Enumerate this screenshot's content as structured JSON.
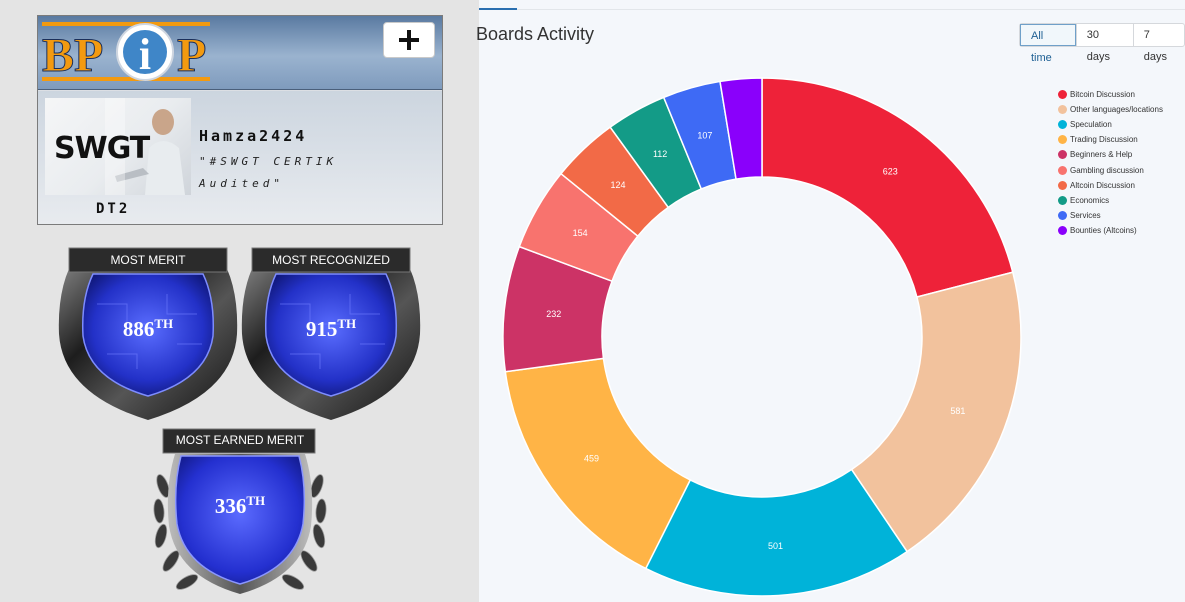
{
  "profile": {
    "logo": {
      "text_left": "BP",
      "text_center": "i",
      "text_right": "P"
    },
    "add_label": "+",
    "avatar_text": "SWGT",
    "username": "Hamza2424",
    "motto_line1": "\"#SWGT CERTIK",
    "motto_line2": "Audited\"",
    "trust_label": "DT2"
  },
  "badges": [
    {
      "title": "MOST MERIT",
      "rank": "886",
      "suffix": "TH"
    },
    {
      "title": "MOST RECOGNIZED",
      "rank": "915",
      "suffix": "TH"
    },
    {
      "title": "MOST EARNED MERIT",
      "rank": "336",
      "suffix": "TH"
    }
  ],
  "chart_panel": {
    "title": "Boards Activity",
    "ranges": [
      {
        "label": "All time",
        "active": true
      },
      {
        "label": "30 days",
        "active": false
      },
      {
        "label": "7 days",
        "active": false
      }
    ]
  },
  "chart_data": {
    "type": "pie",
    "variant": "donut",
    "title": "Boards Activity",
    "legend_position": "top-right",
    "categories": [
      "Bitcoin Discussion",
      "Other languages/locations",
      "Speculation",
      "Trading Discussion",
      "Beginners & Help",
      "Gambling discussion",
      "Altcoin Discussion",
      "Economics",
      "Services",
      "Bounties (Altcoins)"
    ],
    "values": [
      623,
      581,
      501,
      459,
      232,
      154,
      124,
      112,
      107,
      77
    ],
    "colors": [
      "#ee2239",
      "#f2c29d",
      "#00b3d9",
      "#ffb446",
      "#cc3366",
      "#f8736e",
      "#f26a47",
      "#139b87",
      "#3e6af5",
      "#8a00fb"
    ],
    "value_labels_shown": [
      true,
      true,
      true,
      true,
      true,
      true,
      true,
      true,
      true,
      false
    ]
  }
}
